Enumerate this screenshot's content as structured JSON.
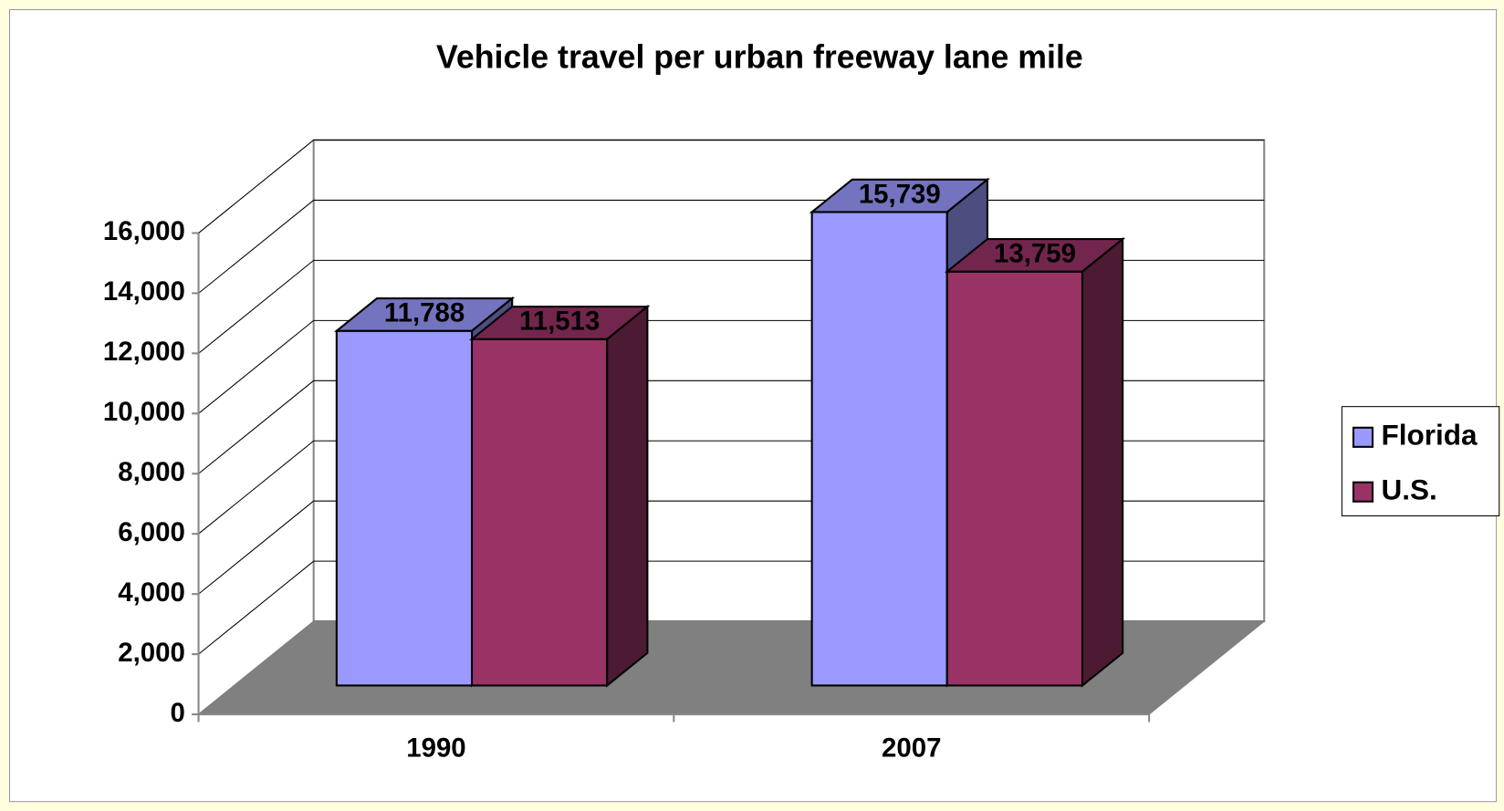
{
  "chart_data": {
    "type": "bar3d",
    "title": "Vehicle travel per urban freeway lane mile",
    "categories": [
      "1990",
      "2007"
    ],
    "series": [
      {
        "name": "Florida",
        "color": "#9999ff",
        "values": [
          11788,
          15739
        ],
        "value_labels": [
          "11,788",
          "15,739"
        ]
      },
      {
        "name": "U.S.",
        "color": "#993366",
        "values": [
          11513,
          13759
        ],
        "value_labels": [
          "11,513",
          "13,759"
        ]
      }
    ],
    "ylim": [
      0,
      16000
    ],
    "yticks": [
      0,
      {
        "value": 2000,
        "label": "2,000"
      },
      {
        "value": 4000,
        "label": "4,000"
      },
      {
        "value": 6000,
        "label": "6,000"
      },
      {
        "value": 8000,
        "label": "8,000"
      },
      {
        "value": 10000,
        "label": "10,000"
      },
      {
        "value": 12000,
        "label": "12,000"
      },
      {
        "value": 14000,
        "label": "14,000"
      },
      {
        "value": 16000,
        "label": "16,000"
      }
    ],
    "grid": true,
    "legend": "right"
  }
}
